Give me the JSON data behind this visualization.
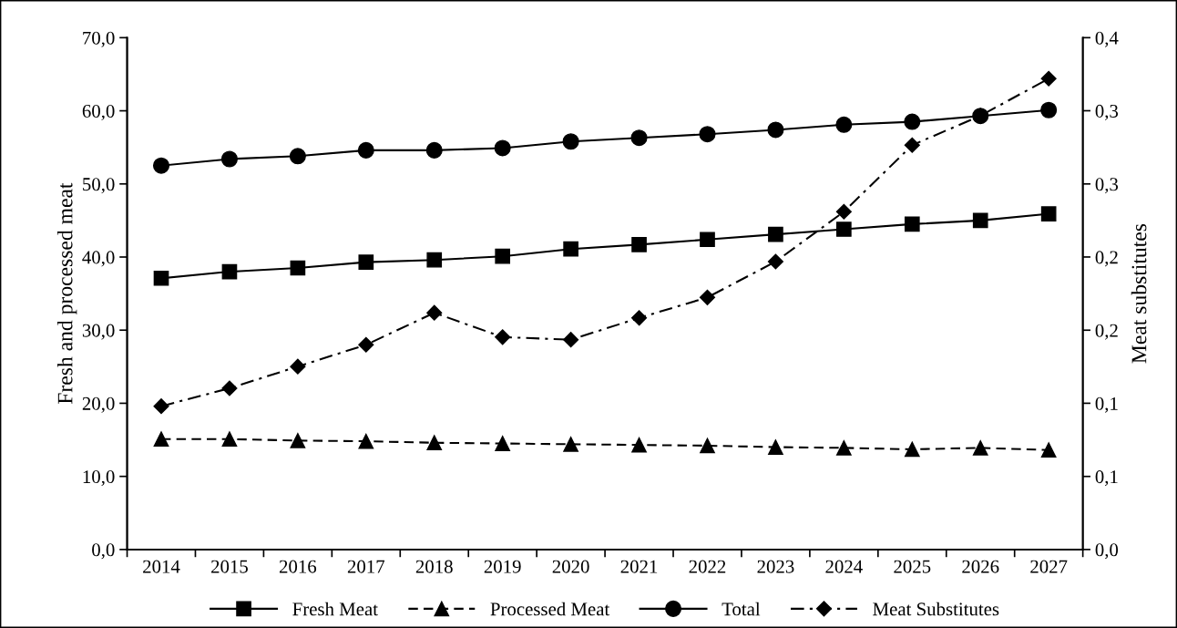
{
  "chart_data": {
    "type": "line",
    "categories": [
      "2014",
      "2015",
      "2016",
      "2017",
      "2018",
      "2019",
      "2020",
      "2021",
      "2022",
      "2023",
      "2024",
      "2025",
      "2026",
      "2027"
    ],
    "ylabel": "Fresh and processed meat",
    "y2label": "Meat substitutes",
    "ylim": [
      0,
      70
    ],
    "yticks": [
      {
        "value": 0,
        "label": "0,0"
      },
      {
        "value": 10,
        "label": "10,0"
      },
      {
        "value": 20,
        "label": "20,0"
      },
      {
        "value": 30,
        "label": "30,0"
      },
      {
        "value": 40,
        "label": "40,0"
      },
      {
        "value": 50,
        "label": "50,0"
      },
      {
        "value": 60,
        "label": "60,0"
      },
      {
        "value": 70,
        "label": "70,0"
      }
    ],
    "y2lim": [
      0,
      0.4
    ],
    "y2ticks": [
      {
        "value": 0,
        "label": "0,0"
      },
      {
        "value": 0.0571,
        "label": "0,1"
      },
      {
        "value": 0.1143,
        "label": "0,1"
      },
      {
        "value": 0.1714,
        "label": "0,2"
      },
      {
        "value": 0.2286,
        "label": "0,2"
      },
      {
        "value": 0.2857,
        "label": "0,3"
      },
      {
        "value": 0.3429,
        "label": "0,3"
      },
      {
        "value": 0.4,
        "label": "0,4"
      }
    ],
    "grid": false,
    "legend": "bottom",
    "series": [
      {
        "name": "Fresh Meat",
        "color": "#000000",
        "marker": "square",
        "line_style": "solid",
        "values": [
          37.1,
          38.0,
          38.5,
          39.3,
          39.6,
          40.1,
          41.1,
          41.7,
          42.4,
          43.1,
          43.8,
          44.5,
          45.0,
          45.9
        ]
      },
      {
        "name": "Processed Meat",
        "color": "#000000",
        "marker": "triangle",
        "line_style": "dashed",
        "values": [
          15.1,
          15.1,
          14.9,
          14.8,
          14.6,
          14.5,
          14.4,
          14.3,
          14.2,
          14.0,
          13.9,
          13.7,
          13.9,
          13.6
        ]
      },
      {
        "name": "Total",
        "color": "#000000",
        "marker": "circle",
        "line_style": "solid",
        "values": [
          52.5,
          53.4,
          53.8,
          54.6,
          54.6,
          54.9,
          55.8,
          56.3,
          56.8,
          57.4,
          58.1,
          58.5,
          59.3,
          60.1
        ]
      },
      {
        "name": "Meat Substitutes",
        "color": "#000000",
        "marker": "diamond",
        "line_style": "dashdot",
        "axis": "y2",
        "values": [
          0.112,
          0.126,
          0.143,
          0.16,
          0.185,
          0.166,
          0.164,
          0.181,
          0.197,
          0.225,
          0.264,
          0.316,
          0.339,
          0.368
        ]
      }
    ]
  }
}
